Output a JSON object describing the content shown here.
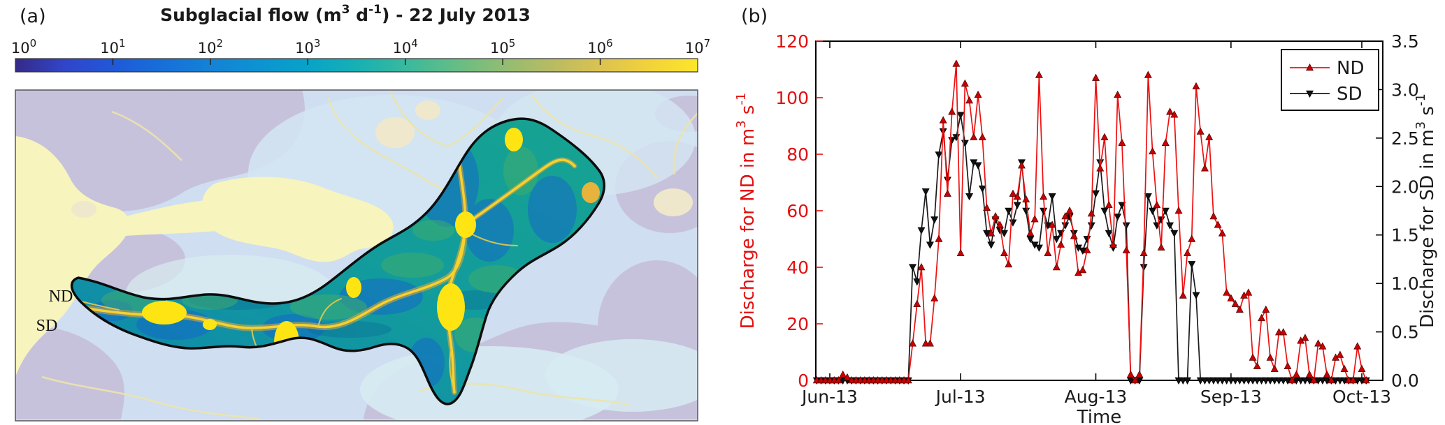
{
  "panel_a": {
    "label": "(a)",
    "title_parts": {
      "pre": "Subglacial flow (m",
      "exp1": "3",
      "mid": " d",
      "exp2": "-1",
      "suffix": ") -  22 July 2013"
    },
    "colorbar": {
      "base": "10",
      "tick_exponents": [
        "0",
        "1",
        "2",
        "3",
        "4",
        "5",
        "6",
        "7"
      ],
      "unit": "m3 d-1",
      "scale": "log",
      "gradient": [
        "#352a87",
        "#3145c8",
        "#2058d8",
        "#176fd8",
        "#1482d6",
        "#0d93d2",
        "#07a3c8",
        "#17b0b4",
        "#38b99e",
        "#63bd86",
        "#90bd73",
        "#b8bb63",
        "#dbc251",
        "#f2d23b",
        "#fce62a"
      ]
    },
    "map_labels": {
      "nd": "ND",
      "sd": "SD"
    }
  },
  "panel_b": {
    "label": "(b)",
    "legend": {
      "nd": "ND",
      "sd": "SD"
    }
  },
  "chart_data": {
    "type": "line",
    "title": "",
    "xlabel": "Time",
    "x_tick_labels": [
      "Jun-13",
      "Jul-13",
      "Aug-13",
      "Sep-13",
      "Oct-13"
    ],
    "x_start_date": "2013-05-29",
    "x_interval": "daily",
    "left_y_axis": {
      "label_parts": {
        "pre": "Discharge for ND in m",
        "exp1": "3",
        "mid": " s",
        "exp2": "-1"
      },
      "ticks": [
        0,
        20,
        40,
        60,
        80,
        100,
        120
      ],
      "range": [
        0,
        120
      ],
      "color": "#e31010"
    },
    "right_y_axis": {
      "label_parts": {
        "pre": "Discharge for SD in m",
        "exp1": "3",
        "mid": " s",
        "exp2": "-1"
      },
      "ticks": [
        "0.0",
        "0.5",
        "1.0",
        "1.5",
        "2.0",
        "2.5",
        "3.0",
        "3.5"
      ],
      "range": [
        0,
        3.5
      ],
      "color": "#1a1a1a"
    },
    "legend_position": "upper right",
    "grid": false,
    "series": [
      {
        "name": "ND",
        "axis": "left",
        "color": "#ee1111",
        "marker": "triangle-up",
        "values": [
          0,
          0,
          0,
          0,
          0,
          0,
          2,
          1,
          0,
          0,
          0,
          0,
          0,
          0,
          0,
          0,
          0,
          0,
          0,
          0,
          0,
          0,
          13,
          27,
          40,
          13,
          13,
          29,
          50,
          92,
          66,
          95,
          112,
          45,
          105,
          99,
          86,
          101,
          86,
          61,
          52,
          58,
          55,
          45,
          41,
          66,
          65,
          76,
          64,
          52,
          57,
          108,
          65,
          45,
          55,
          40,
          48,
          58,
          60,
          51,
          38,
          39,
          46,
          59,
          107,
          75,
          86,
          62,
          48,
          101,
          84,
          46,
          2,
          0,
          2,
          45,
          108,
          81,
          62,
          47,
          84,
          95,
          94,
          60,
          30,
          45,
          50,
          104,
          88,
          75,
          86,
          58,
          55,
          52,
          31,
          29,
          27,
          25,
          30,
          31,
          8,
          5,
          22,
          25,
          8,
          4,
          17,
          17,
          5,
          0,
          2,
          14,
          15,
          2,
          0,
          13,
          12,
          2,
          0,
          8,
          9,
          4,
          0,
          0,
          12,
          4,
          0
        ]
      },
      {
        "name": "SD",
        "axis": "right",
        "color": "#1a1a1a",
        "marker": "triangle-down",
        "values": [
          0,
          0,
          0,
          0,
          0,
          0,
          0,
          0,
          0,
          0,
          0,
          0,
          0,
          0,
          0,
          0,
          0,
          0,
          0,
          0,
          0,
          0,
          1.17,
          1.02,
          1.55,
          1.95,
          1.4,
          1.66,
          2.33,
          2.57,
          2.07,
          2.48,
          2.51,
          2.74,
          2.45,
          1.9,
          2.25,
          2.22,
          1.98,
          1.52,
          1.4,
          1.66,
          1.55,
          1.52,
          1.75,
          1.63,
          1.81,
          2.25,
          1.75,
          1.46,
          1.4,
          1.37,
          1.75,
          1.6,
          1.9,
          1.46,
          1.52,
          1.6,
          1.69,
          1.52,
          1.37,
          1.34,
          1.46,
          1.6,
          1.93,
          2.25,
          1.75,
          1.52,
          1.37,
          1.69,
          1.81,
          1.6,
          0,
          0,
          0,
          1.17,
          1.9,
          1.75,
          1.6,
          1.66,
          1.75,
          1.6,
          1.52,
          0,
          0,
          0,
          1.2,
          0.88,
          0,
          0,
          0,
          0,
          0,
          0,
          0,
          0,
          0,
          0,
          0,
          0,
          0,
          0,
          0,
          0,
          0,
          0,
          0,
          0,
          0,
          0,
          0,
          0,
          0,
          0,
          0,
          0,
          0,
          0,
          0,
          0,
          0,
          0,
          0,
          0,
          0,
          0,
          0
        ]
      }
    ]
  }
}
